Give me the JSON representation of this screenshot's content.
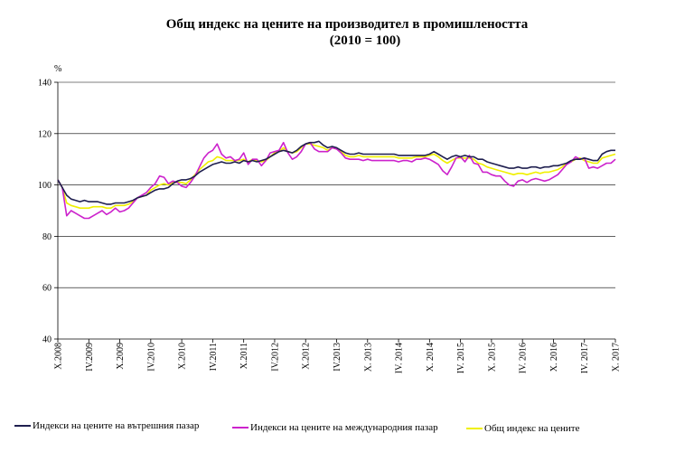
{
  "chart_data": {
    "type": "line",
    "title": "Общ индекс на цените на производител в промишлеността",
    "subtitle": "(2010 = 100)",
    "ylabel": "%",
    "ylim": [
      40,
      140
    ],
    "yticks": [
      40,
      60,
      80,
      100,
      120,
      140
    ],
    "grid": "horizontal",
    "legend_position": "bottom",
    "x_start": "X.2008",
    "x_labels": [
      "X.2008",
      "IV.2009",
      "X.2009",
      "IV.2010",
      "X.2010",
      "IV.2011",
      "X.2011",
      "IV.2012",
      "X.2012",
      "IV.2013",
      "X. 2013",
      "IV. 2014",
      "X. 2014",
      "IV. 2015",
      "X. 2015",
      "IV. 2016",
      "X. 2016",
      "IV. 2017",
      "X. 2017"
    ],
    "series": [
      {
        "name": "Индекси на цените на вътрешния пазар",
        "color": "#1f1f4f",
        "values": [
          102,
          99,
          96,
          94.5,
          94,
          93.5,
          94,
          93.5,
          93.5,
          93.5,
          93,
          92.5,
          92.5,
          93,
          93,
          93,
          93.5,
          94,
          95,
          95.5,
          96,
          97,
          98,
          98.5,
          98.5,
          99,
          100.5,
          101.5,
          102,
          102,
          102.5,
          103.5,
          105,
          106,
          107,
          108,
          108.5,
          109,
          108.5,
          108.5,
          109,
          108.5,
          109.5,
          109,
          109.5,
          109,
          109.5,
          110,
          111,
          112,
          113,
          113.5,
          113,
          112.5,
          113.5,
          115,
          116,
          116.5,
          116.5,
          117,
          115.5,
          114.5,
          115,
          114.5,
          113.5,
          112.5,
          112,
          112,
          112.5,
          112,
          112,
          112,
          112,
          112,
          112,
          112,
          112,
          111.5,
          111.5,
          111.5,
          111.5,
          111.5,
          111.5,
          111.5,
          112,
          113,
          112,
          111,
          110,
          111,
          111.5,
          111,
          111.5,
          111,
          111,
          110,
          110,
          109,
          108.5,
          108,
          107.5,
          107,
          106.5,
          106.5,
          107,
          106.5,
          106.5,
          107,
          107,
          106.5,
          107,
          107,
          107.5,
          107.5,
          108,
          108.5,
          109.5,
          110,
          110,
          110.5,
          110,
          109.5,
          109.5,
          112,
          113,
          113.5,
          113.5
        ]
      },
      {
        "name": "Индекси на цените на международния пазар",
        "color": "#cc22cc",
        "values": [
          102,
          99,
          88,
          90,
          89,
          88,
          87,
          87,
          88,
          89,
          90,
          88.5,
          89.5,
          91,
          89.5,
          90,
          91,
          93,
          95,
          96,
          97,
          99,
          100.5,
          103.5,
          103,
          100.5,
          101.5,
          101,
          99.5,
          99,
          101,
          103.5,
          107,
          110.5,
          112.5,
          113.5,
          116,
          112,
          110.5,
          111,
          109.5,
          110,
          112.5,
          108,
          110,
          110,
          107.5,
          109.5,
          112.5,
          113,
          113.5,
          116.5,
          112.5,
          110,
          111,
          113,
          116,
          116.5,
          114,
          113,
          113,
          113,
          114.5,
          114,
          112.5,
          110.5,
          110,
          110,
          110,
          109.5,
          110,
          109.5,
          109.5,
          109.5,
          109.5,
          109.5,
          109.5,
          109,
          109.5,
          109.5,
          109,
          110,
          110,
          110.5,
          110,
          109,
          108,
          105.5,
          104,
          107,
          110.5,
          111,
          109,
          111.5,
          108.5,
          108,
          105,
          105,
          104,
          103.5,
          103.5,
          101.5,
          100,
          99.5,
          101.5,
          102,
          101,
          102,
          102.5,
          102,
          101.5,
          102,
          103,
          104,
          106,
          108,
          109,
          111,
          110,
          110.5,
          106.5,
          107,
          106.5,
          107.5,
          108.5,
          108.5,
          110
        ]
      },
      {
        "name": "Общ индекс на цените",
        "color": "#f0f000",
        "values": [
          102,
          99,
          93,
          92,
          91.5,
          91,
          91,
          91,
          91.5,
          91.5,
          91.5,
          91,
          91,
          92,
          92,
          92,
          92.5,
          93.5,
          95,
          95.5,
          96,
          98,
          99,
          100,
          100.5,
          100,
          101,
          101,
          101,
          100.5,
          102,
          104,
          106,
          107.5,
          109,
          109.5,
          111,
          110.5,
          109.5,
          109.5,
          109.5,
          109.5,
          110,
          109,
          110,
          109.5,
          109,
          109.5,
          111,
          112.5,
          113,
          114.5,
          113,
          112.5,
          113,
          114.5,
          116,
          116,
          115.5,
          115,
          114.5,
          113.5,
          114.5,
          114,
          113,
          111.5,
          111,
          111,
          111.5,
          111,
          111,
          111,
          111,
          111,
          111,
          111,
          111,
          110.5,
          110.5,
          110.5,
          110.5,
          111,
          111,
          111,
          111.5,
          112,
          111,
          109.5,
          108.5,
          109.5,
          110.5,
          110.5,
          110.5,
          110.5,
          110,
          108.5,
          108,
          107,
          106.5,
          106,
          105.5,
          105,
          104.5,
          104,
          104.5,
          104.5,
          104,
          104.5,
          105,
          104.5,
          105,
          105,
          105.5,
          106,
          107,
          108.5,
          109,
          110,
          110.5,
          109.5,
          109,
          108.5,
          108.5,
          110.5,
          111,
          111.5,
          112
        ]
      }
    ]
  }
}
